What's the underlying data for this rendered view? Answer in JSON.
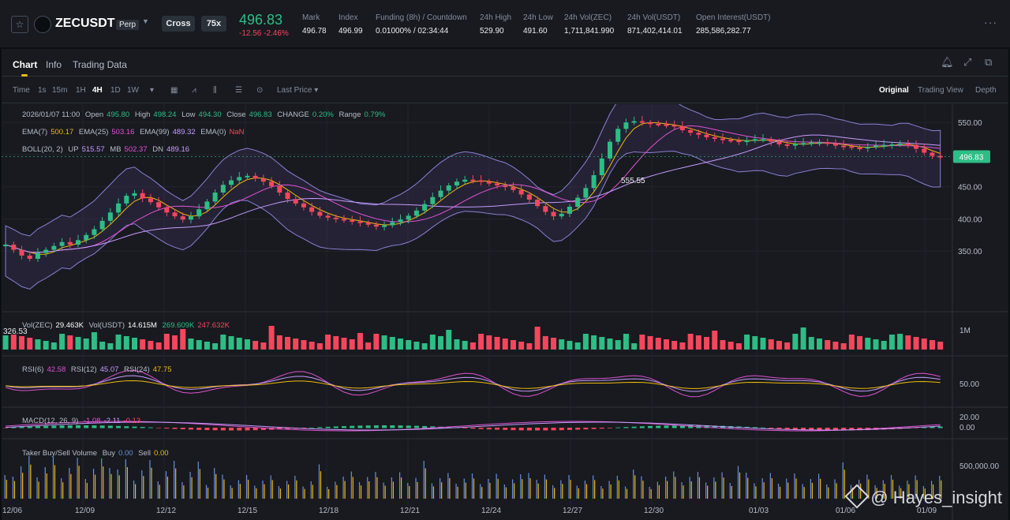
{
  "header": {
    "symbol": "ZECUSDT",
    "perp": "Perp",
    "margin_mode": "Cross",
    "leverage": "75x",
    "price": "496.83",
    "change": "-12.56 -2.46%",
    "stats": [
      {
        "label": "Mark",
        "value": "496.78"
      },
      {
        "label": "Index",
        "value": "496.99"
      },
      {
        "label": "Funding (8h) / Countdown",
        "value": "0.01000% / 02:34:44"
      },
      {
        "label": "24h High",
        "value": "529.90"
      },
      {
        "label": "24h Low",
        "value": "491.60"
      },
      {
        "label": "24h Vol(ZEC)",
        "value": "1,711,841.990"
      },
      {
        "label": "24h Vol(USDT)",
        "value": "871,402,414.01"
      },
      {
        "label": "Open Interest(USDT)",
        "value": "285,586,282.77"
      }
    ],
    "more_icon": "more-dots-icon"
  },
  "tabs": [
    "Chart",
    "Info",
    "Trading Data"
  ],
  "toolbar": {
    "intervals": [
      "Time",
      "1s",
      "15m",
      "1H",
      "4H",
      "1D",
      "1W"
    ],
    "selected_interval": "4H",
    "price_type": "Last Price",
    "views": [
      "Original",
      "Trading View",
      "Depth"
    ],
    "selected_view": "Original"
  },
  "legend": {
    "ohlc": {
      "date": "2026/01/07 11:00",
      "open": "495.80",
      "high": "498.24",
      "low": "494.30",
      "close": "496.83",
      "change": "0.20%",
      "range": "0.79%"
    },
    "ema": {
      "ema7": "500.17",
      "ema25": "503.16",
      "ema99": "489.32",
      "ema0": "NaN"
    },
    "boll": {
      "label": "BOLL(20, 2)",
      "up": "515.57",
      "mb": "502.37",
      "dn": "489.16"
    },
    "vol": {
      "zec": "29.463K",
      "usdt": "14.615M",
      "ma1": "269.609K",
      "ma2": "247.632K"
    },
    "rsi": {
      "r6": "42.58",
      "r12": "45.07",
      "r24": "47.75"
    },
    "macd": {
      "label": "MACD(12, 26, 9)",
      "a": "-1.08",
      "b": "-2.11",
      "c": "-0.13"
    },
    "taker": {
      "label": "Taker Buy/Sell Volume",
      "buy": "0.00",
      "sell": "0.00"
    }
  },
  "price_axis": [
    "550.00",
    "500.00",
    "450.00",
    "400.00",
    "350.00"
  ],
  "current_price_tag": "496.83",
  "high_label": "555.55",
  "low_label": "326.53",
  "vol_axis": "1M",
  "rsi_axis": "50.00",
  "macd_axis": [
    "20.00",
    "0.00"
  ],
  "taker_axis": "500,000.00",
  "date_axis": [
    "12/06",
    "12/09",
    "12/12",
    "12/15",
    "12/18",
    "12/21",
    "12/24",
    "12/27",
    "12/30",
    "01/03",
    "01/06",
    "01/09"
  ],
  "watermark": "@ Hayes_insight",
  "colors": {
    "up": "#2ebd85",
    "down": "#f6465d",
    "accent": "#f0b90b"
  },
  "series": [
    360,
    352,
    343,
    338,
    347,
    352,
    358,
    364,
    360,
    367,
    375,
    384,
    397,
    410,
    424,
    436,
    440,
    432,
    426,
    418,
    410,
    404,
    399,
    404,
    415,
    427,
    441,
    453,
    460,
    465,
    467,
    463,
    458,
    451,
    441,
    431,
    424,
    418,
    411,
    405,
    402,
    400,
    398,
    396,
    394,
    391,
    388,
    390,
    395,
    399,
    405,
    413,
    423,
    434,
    444,
    452,
    458,
    461,
    460,
    458,
    455,
    452,
    450,
    445,
    438,
    430,
    420,
    411,
    404,
    408,
    419,
    433,
    448,
    468,
    494,
    520,
    540,
    550,
    552,
    550,
    548,
    547,
    546,
    544,
    538,
    534,
    531,
    527,
    525,
    523,
    522,
    520,
    522,
    524,
    524,
    520,
    516,
    514,
    517,
    518,
    519,
    519,
    517,
    514,
    513,
    511,
    510,
    512,
    514,
    515,
    516,
    517,
    515,
    509,
    503,
    498,
    497
  ]
}
